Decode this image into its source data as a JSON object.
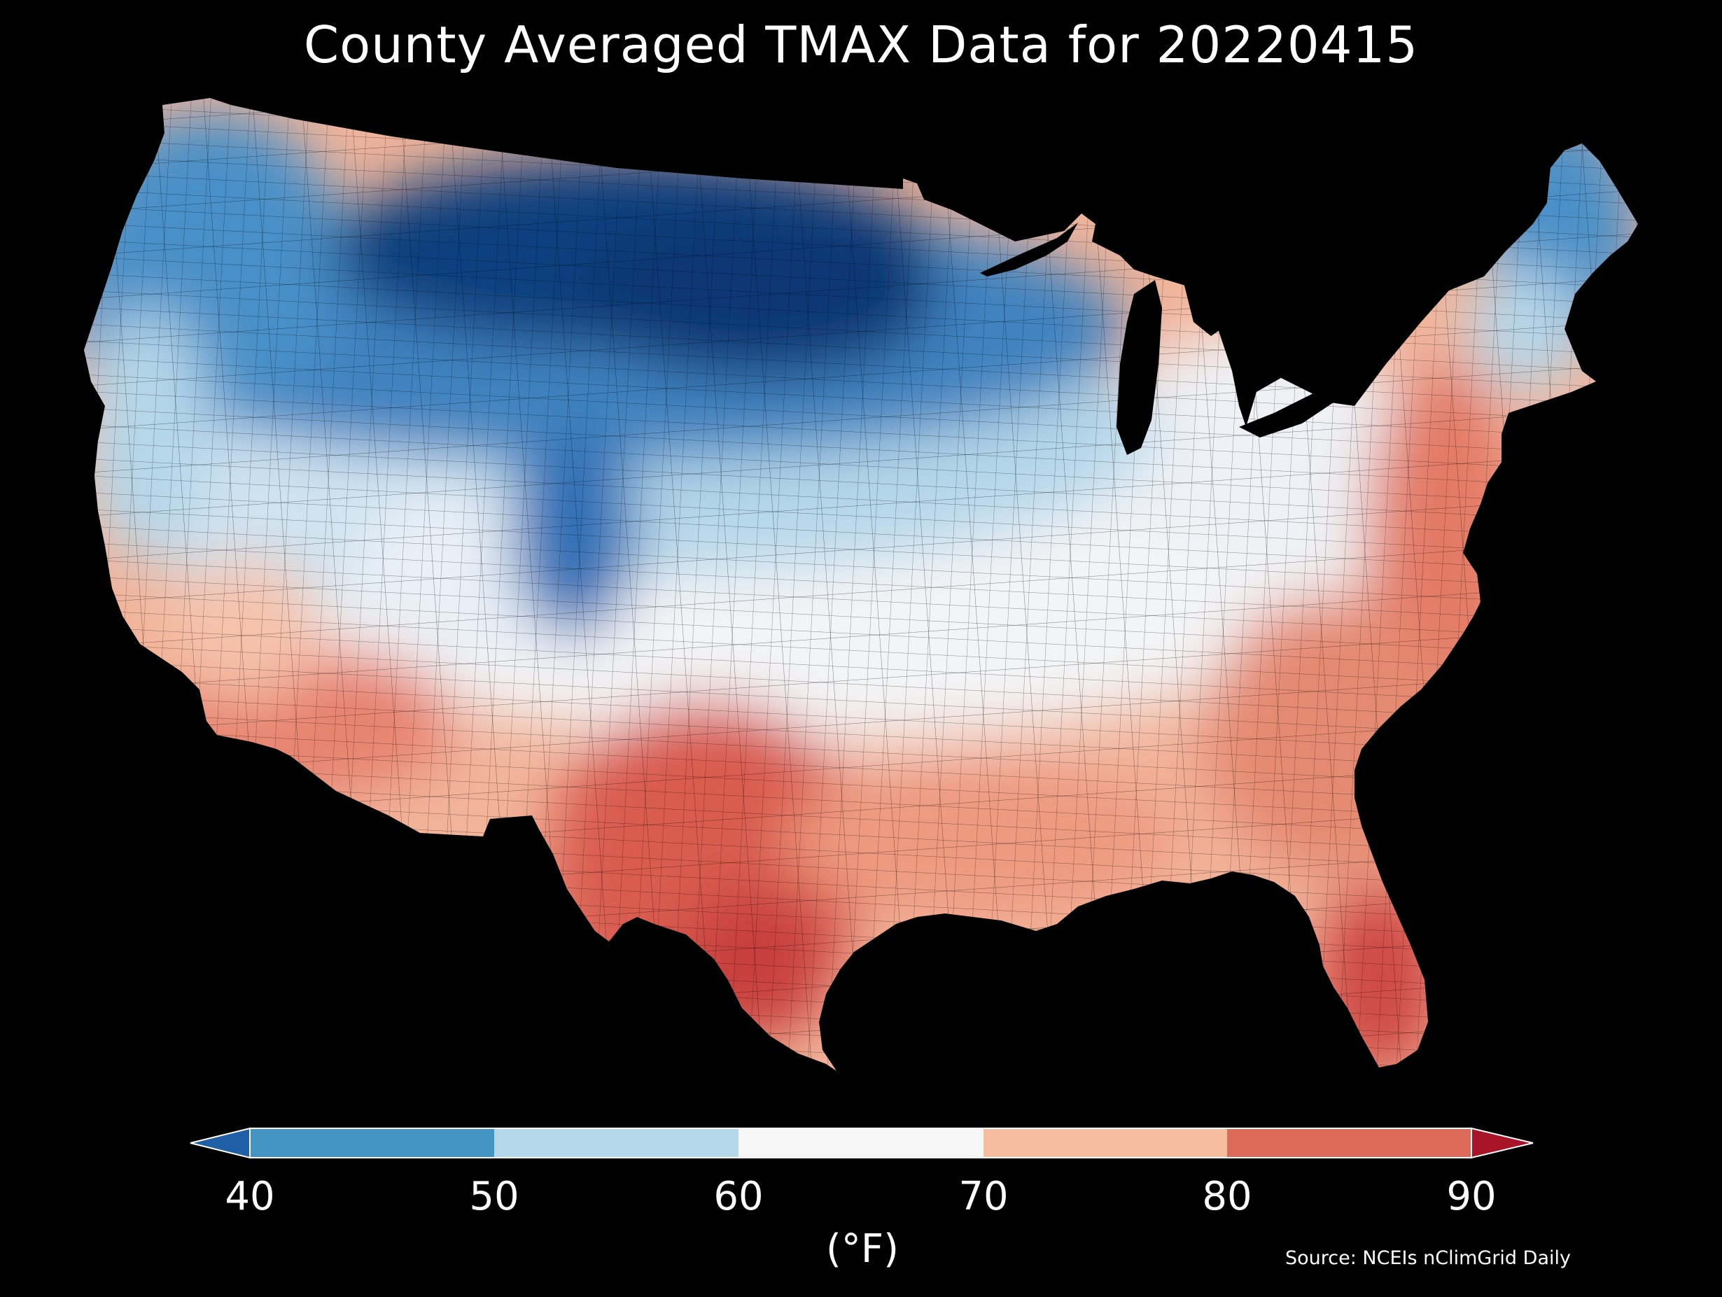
{
  "title": "County Averaged TMAX Data for 20220415",
  "source": "Source: NCEIs nClimGrid Daily",
  "legend": {
    "unit_label": "(°F)",
    "ticks": [
      "40",
      "50",
      "60",
      "70",
      "80",
      "90"
    ],
    "bins": [
      {
        "range": "<40",
        "color": "#1f5fa6"
      },
      {
        "range": "40-50",
        "color": "#4393c3"
      },
      {
        "range": "50-60",
        "color": "#b5d7ea"
      },
      {
        "range": "60-70",
        "color": "#f6f6f6"
      },
      {
        "range": "70-80",
        "color": "#f7bda1"
      },
      {
        "range": "80-90",
        "color": "#dc6b59"
      },
      {
        "range": ">90",
        "color": "#a81529"
      }
    ]
  },
  "map": {
    "region": "Contiguous United States counties",
    "variable": "TMAX",
    "pattern": [
      {
        "area": "Northern Plains / Upper Midwest",
        "level": "<40",
        "color": "#08306b"
      },
      {
        "area": "Pacific Northwest / Northern Rockies",
        "level": "40-50",
        "color": "#2f6fb6"
      },
      {
        "area": "Maine / Northern New England",
        "level": "40-50",
        "color": "#4a90c8"
      },
      {
        "area": "Great Basin / Central Plains",
        "level": "50-60",
        "color": "#b5d7ea"
      },
      {
        "area": "Ohio Valley / Midwest",
        "level": "60-70",
        "color": "#eef2f6"
      },
      {
        "area": "Southwest / Southern Plains",
        "level": "70-80",
        "color": "#f4b49a"
      },
      {
        "area": "Southeast / Mid-Atlantic",
        "level": "70-80",
        "color": "#e8856e"
      },
      {
        "area": "South Texas / South Florida",
        "level": "80-90",
        "color": "#cf4a45"
      }
    ]
  }
}
